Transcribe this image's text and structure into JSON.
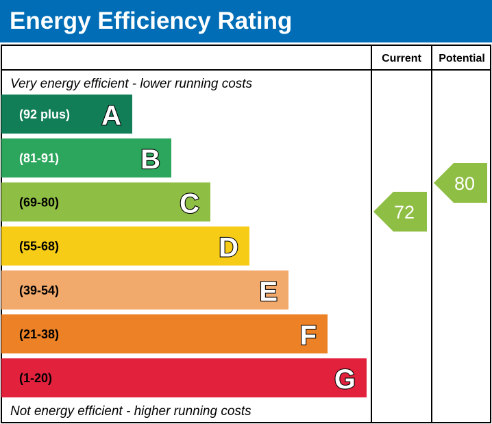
{
  "chart_data": {
    "type": "bar",
    "title": "Energy Efficiency Rating",
    "columns": [
      "Current",
      "Potential"
    ],
    "top_note": "Very energy efficient - lower running costs",
    "bottom_note": "Not energy efficient - higher running costs",
    "bands": [
      {
        "letter": "A",
        "range": "(92 plus)",
        "color": "#127e57",
        "text_color": "#ffffff"
      },
      {
        "letter": "B",
        "range": "(81-91)",
        "color": "#2ca65c",
        "text_color": "#ffffff"
      },
      {
        "letter": "C",
        "range": "(69-80)",
        "color": "#8fbe44",
        "text_color": "#000000"
      },
      {
        "letter": "D",
        "range": "(55-68)",
        "color": "#f6cc17",
        "text_color": "#000000"
      },
      {
        "letter": "E",
        "range": "(39-54)",
        "color": "#f2aa6c",
        "text_color": "#000000"
      },
      {
        "letter": "F",
        "range": "(21-38)",
        "color": "#ec8126",
        "text_color": "#000000"
      },
      {
        "letter": "G",
        "range": "(1-20)",
        "color": "#e2213d",
        "text_color": "#000000"
      }
    ],
    "current": {
      "value": 72,
      "label": "72",
      "band": "C",
      "color": "#8fbe44"
    },
    "potential": {
      "value": 80,
      "label": "80",
      "band": "C",
      "color": "#8fbe44"
    }
  },
  "header_color": "#006db6"
}
